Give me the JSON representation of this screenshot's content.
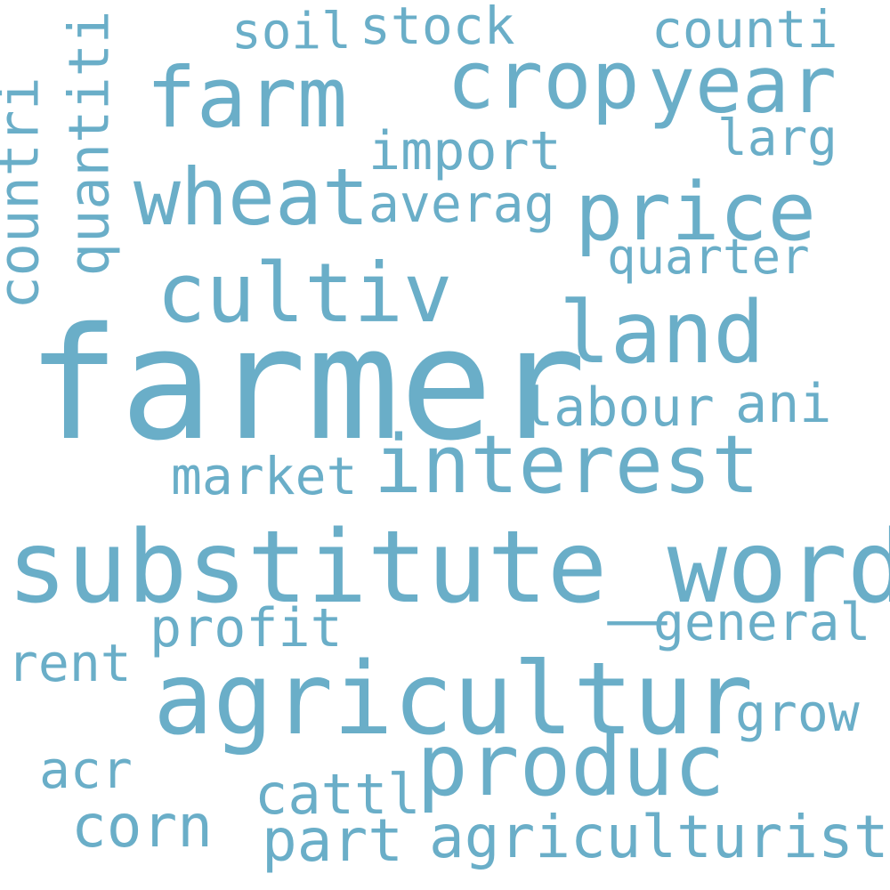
{
  "word_cloud": {
    "color": "#6aaec8",
    "background": "#ffffff",
    "words": [
      {
        "text": "farmer"
      },
      {
        "text": "substitute_word"
      },
      {
        "text": "agricultur"
      },
      {
        "text": "interest"
      },
      {
        "text": "produc"
      },
      {
        "text": "price"
      },
      {
        "text": "land"
      },
      {
        "text": "cultiv"
      },
      {
        "text": "wheat"
      },
      {
        "text": "farm"
      },
      {
        "text": "crop"
      },
      {
        "text": "year"
      },
      {
        "text": "agriculturist"
      },
      {
        "text": "general"
      },
      {
        "text": "profit"
      },
      {
        "text": "labour"
      },
      {
        "text": "ani"
      },
      {
        "text": "market"
      },
      {
        "text": "import"
      },
      {
        "text": "averag"
      },
      {
        "text": "larg"
      },
      {
        "text": "quarter"
      },
      {
        "text": "counti"
      },
      {
        "text": "soil"
      },
      {
        "text": "stock"
      },
      {
        "text": "rent"
      },
      {
        "text": "grow"
      },
      {
        "text": "acr"
      },
      {
        "text": "cattl"
      },
      {
        "text": "corn"
      },
      {
        "text": "part"
      },
      {
        "text": "countri"
      },
      {
        "text": "quantiti"
      }
    ]
  }
}
